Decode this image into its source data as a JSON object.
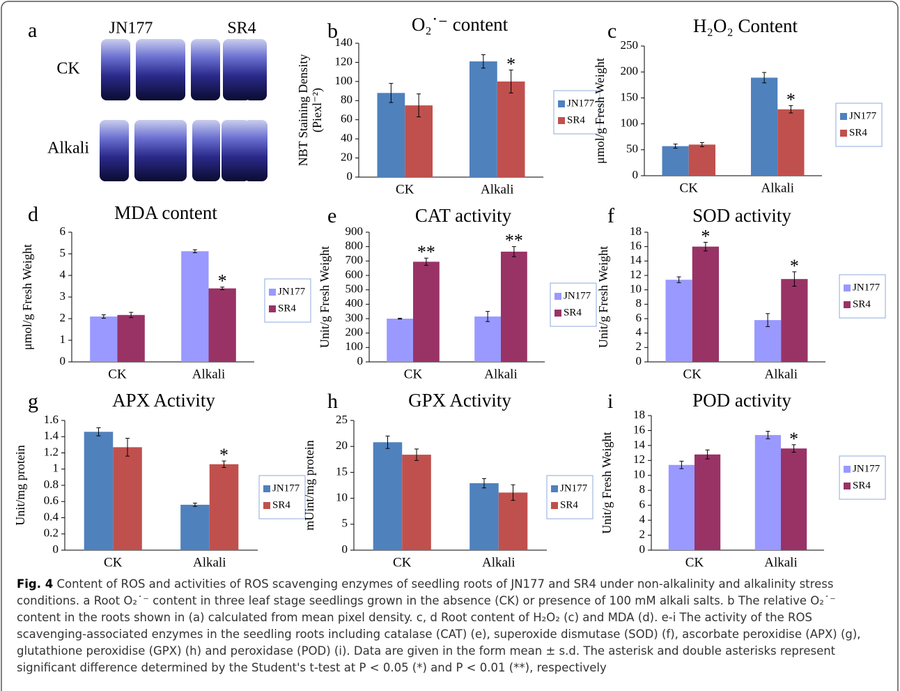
{
  "panel_a": {
    "label": "a",
    "columns": [
      "JN177",
      "SR4"
    ],
    "rows": [
      "CK",
      "Alkali"
    ]
  },
  "chart_data": [
    {
      "type": "bar",
      "panel": "b",
      "title": "O₂˙⁻ content",
      "ylabel": [
        "NBT Staining Density",
        "(Piexl⁻²)"
      ],
      "categories": [
        "CK",
        "Alkali"
      ],
      "ylim": [
        0,
        140
      ],
      "yticks": [
        0,
        20,
        40,
        60,
        80,
        100,
        120,
        140
      ],
      "legend": "right",
      "series": [
        {
          "name": "JN177",
          "color": "#4f81bd",
          "values": [
            88,
            121
          ],
          "errors": [
            10,
            7
          ],
          "significance": [
            null,
            null
          ]
        },
        {
          "name": "SR4",
          "color": "#c0504d",
          "values": [
            75,
            100
          ],
          "errors": [
            12,
            12
          ],
          "significance": [
            null,
            "*"
          ]
        }
      ]
    },
    {
      "type": "bar",
      "panel": "c",
      "title": "H₂O₂ Content",
      "ylabel": [
        "μmol/g Fresh Weight"
      ],
      "categories": [
        "CK",
        "Alkali"
      ],
      "ylim": [
        0,
        250
      ],
      "yticks": [
        0,
        50,
        100,
        150,
        200,
        250
      ],
      "legend": "right",
      "series": [
        {
          "name": "JN177",
          "color": "#4f81bd",
          "values": [
            57,
            189
          ],
          "errors": [
            4,
            10
          ],
          "significance": [
            null,
            null
          ]
        },
        {
          "name": "SR4",
          "color": "#c0504d",
          "values": [
            60,
            128
          ],
          "errors": [
            4,
            7
          ],
          "significance": [
            null,
            "*"
          ]
        }
      ]
    },
    {
      "type": "bar",
      "panel": "d",
      "title": "MDA content",
      "ylabel": [
        "μmol/g Fresh Weight"
      ],
      "categories": [
        "CK",
        "Alkali"
      ],
      "ylim": [
        0,
        6
      ],
      "yticks": [
        0,
        1,
        2,
        3,
        4,
        5,
        6
      ],
      "legend": "right",
      "series": [
        {
          "name": "JN177",
          "color": "#9999ff",
          "values": [
            2.1,
            5.12
          ],
          "errors": [
            0.08,
            0.07
          ],
          "significance": [
            null,
            null
          ]
        },
        {
          "name": "SR4",
          "color": "#993366",
          "values": [
            2.17,
            3.4
          ],
          "errors": [
            0.12,
            0.06
          ],
          "significance": [
            null,
            "*"
          ]
        }
      ]
    },
    {
      "type": "bar",
      "panel": "e",
      "title": "CAT activity",
      "ylabel": [
        "Unit/g Fresh Weight"
      ],
      "categories": [
        "CK",
        "Alkali"
      ],
      "ylim": [
        0,
        900
      ],
      "yticks": [
        0,
        100,
        200,
        300,
        400,
        500,
        600,
        700,
        800,
        900
      ],
      "legend": "right",
      "series": [
        {
          "name": "JN177",
          "color": "#9999ff",
          "values": [
            300,
            315
          ],
          "errors": [
            3,
            35
          ],
          "significance": [
            null,
            null
          ]
        },
        {
          "name": "SR4",
          "color": "#993366",
          "values": [
            695,
            765
          ],
          "errors": [
            25,
            35
          ],
          "significance": [
            "**",
            "**"
          ]
        }
      ]
    },
    {
      "type": "bar",
      "panel": "f",
      "title": "SOD activity",
      "ylabel": [
        "Unit/g Fresh Weight"
      ],
      "categories": [
        "CK",
        "Alkali"
      ],
      "ylim": [
        0,
        18
      ],
      "yticks": [
        0,
        2,
        4,
        6,
        8,
        10,
        12,
        14,
        16,
        18
      ],
      "legend": "right",
      "series": [
        {
          "name": "JN177",
          "color": "#9999ff",
          "values": [
            11.4,
            5.8
          ],
          "errors": [
            0.4,
            0.9
          ],
          "significance": [
            null,
            null
          ]
        },
        {
          "name": "SR4",
          "color": "#993366",
          "values": [
            16,
            11.5
          ],
          "errors": [
            0.6,
            1
          ],
          "significance": [
            "*",
            "*"
          ]
        }
      ]
    },
    {
      "type": "bar",
      "panel": "g",
      "title": "APX Activity",
      "ylabel": [
        "Unit/mg protein"
      ],
      "categories": [
        "CK",
        "Alkali"
      ],
      "ylim": [
        0,
        1.6
      ],
      "yticks": [
        0,
        0.2,
        0.4,
        0.6,
        0.8,
        1,
        1.2,
        1.4,
        1.6
      ],
      "legend": "right",
      "series": [
        {
          "name": "JN177",
          "color": "#4f81bd",
          "values": [
            1.46,
            0.56
          ],
          "errors": [
            0.05,
            0.02
          ],
          "significance": [
            null,
            null
          ]
        },
        {
          "name": "SR4",
          "color": "#c0504d",
          "values": [
            1.27,
            1.06
          ],
          "errors": [
            0.11,
            0.04
          ],
          "significance": [
            null,
            "*"
          ]
        }
      ]
    },
    {
      "type": "bar",
      "panel": "h",
      "title": "GPX Activity",
      "ylabel": [
        "mUint/mg protein"
      ],
      "categories": [
        "CK",
        "Alkali"
      ],
      "ylim": [
        0,
        25
      ],
      "yticks": [
        0,
        5,
        10,
        15,
        20,
        25
      ],
      "legend": "right",
      "series": [
        {
          "name": "JN177",
          "color": "#4f81bd",
          "values": [
            20.8,
            12.9
          ],
          "errors": [
            1.2,
            0.9
          ],
          "significance": [
            null,
            null
          ]
        },
        {
          "name": "SR4",
          "color": "#c0504d",
          "values": [
            18.4,
            11.1
          ],
          "errors": [
            1.1,
            1.5
          ],
          "significance": [
            null,
            null
          ]
        }
      ]
    },
    {
      "type": "bar",
      "panel": "i",
      "title": "POD activity",
      "ylabel": [
        "Unit/g Fresh Weight"
      ],
      "categories": [
        "CK",
        "Alkali"
      ],
      "ylim": [
        0,
        18
      ],
      "yticks": [
        0,
        2,
        4,
        6,
        8,
        10,
        12,
        14,
        16,
        18
      ],
      "legend": "right",
      "series": [
        {
          "name": "JN177",
          "color": "#9999ff",
          "values": [
            11.4,
            15.4
          ],
          "errors": [
            0.5,
            0.5
          ],
          "significance": [
            null,
            null
          ]
        },
        {
          "name": "SR4",
          "color": "#993366",
          "values": [
            12.8,
            13.6
          ],
          "errors": [
            0.6,
            0.5
          ],
          "significance": [
            null,
            "*"
          ]
        }
      ]
    }
  ],
  "caption": {
    "label": "Fig. 4",
    "lines": [
      "Content of ROS and activities of ROS scavenging enzymes of seedling roots of JN177 and SR4 under non-alkalinity and alkalinity stress",
      "conditions. a Root O₂˙⁻ content in three leaf stage seedlings grown in the absence (CK) or presence of 100 mM alkali salts. b The relative O₂˙⁻",
      "content in the roots shown in (a) calculated from mean pixel density. c, d Root content of H₂O₂ (c) and MDA (d). e-i The activity of the ROS",
      "scavenging-associated enzymes in the seedling roots including catalase (CAT) (e), superoxide dismutase (SOD) (f), ascorbate peroxidise (APX) (g),",
      "glutathione peroxidise (GPX) (h) and peroxidase (POD) (i). Data are given in the form mean ± s.d. The asterisk and double asterisks represent",
      "significant difference determined by the Student's t-test at P < 0.05 (*) and P < 0.01 (**), respectively"
    ]
  }
}
